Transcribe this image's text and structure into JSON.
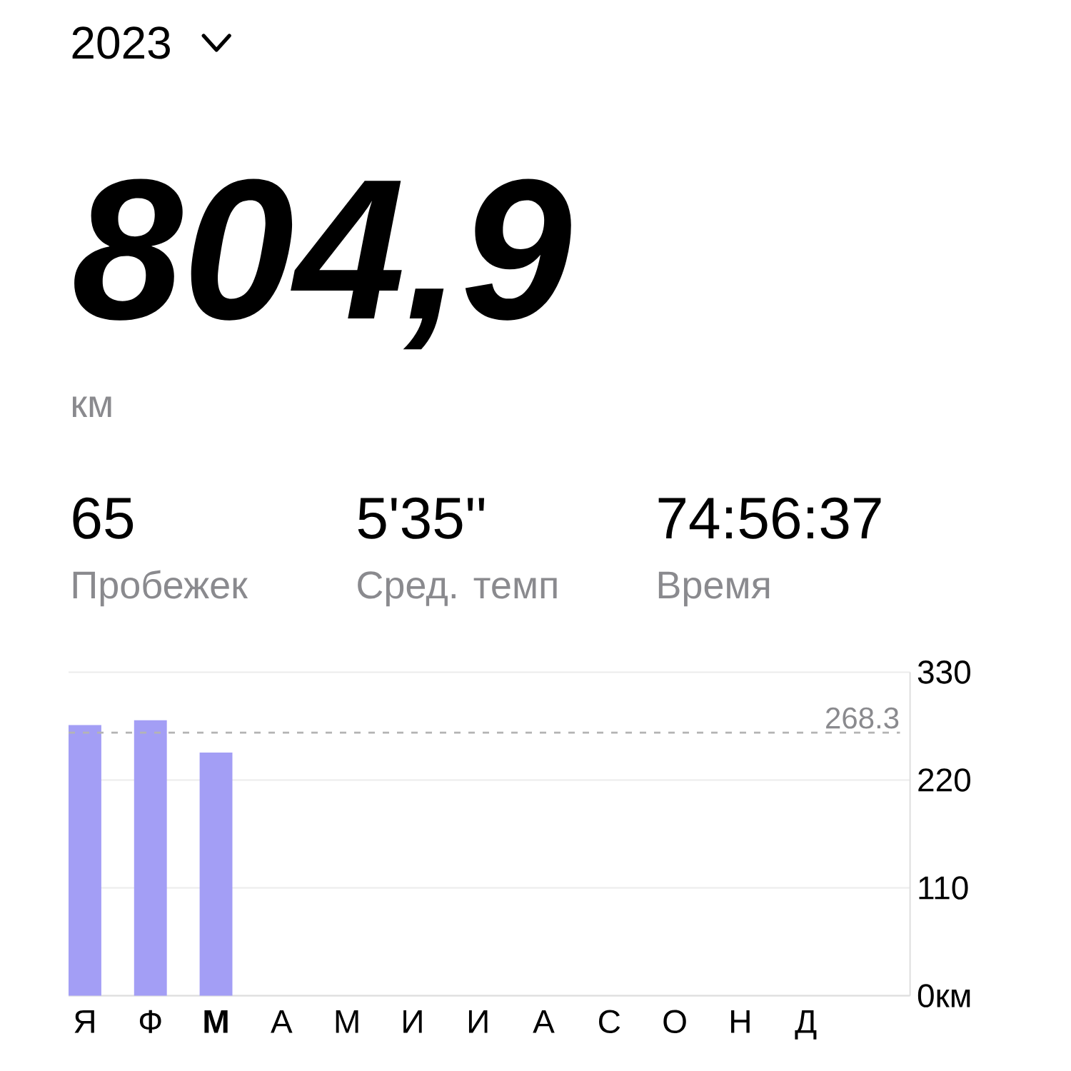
{
  "chart_data": [
    {
      "type": "other",
      "title": "2023",
      "annotations": [
        "804,9",
        "км",
        "65",
        "Пробежек",
        "5'35''",
        "Сред. темп",
        "74:56:37",
        "Время"
      ]
    },
    {
      "type": "bar",
      "categories": [
        "Я",
        "Ф",
        "**М**",
        "А",
        "М",
        "И",
        "И",
        "А",
        "С",
        "О",
        "Н",
        "Д"
      ],
      "values": [
        276,
        281,
        248,
        null,
        null,
        null,
        null,
        null,
        null,
        null,
        null,
        null
      ],
      "color": "#a39ef5",
      "ylim": [
        0,
        330
      ],
      "yticks": [
        {
          "value": 0,
          "label": "0км"
        },
        110,
        220,
        330
      ],
      "grid": "y",
      "ref_lines": [
        {
          "axis": "y",
          "value": 268.3,
          "label": "268.3",
          "line_style": "dashed",
          "color": "#b4b4b4"
        }
      ]
    }
  ]
}
